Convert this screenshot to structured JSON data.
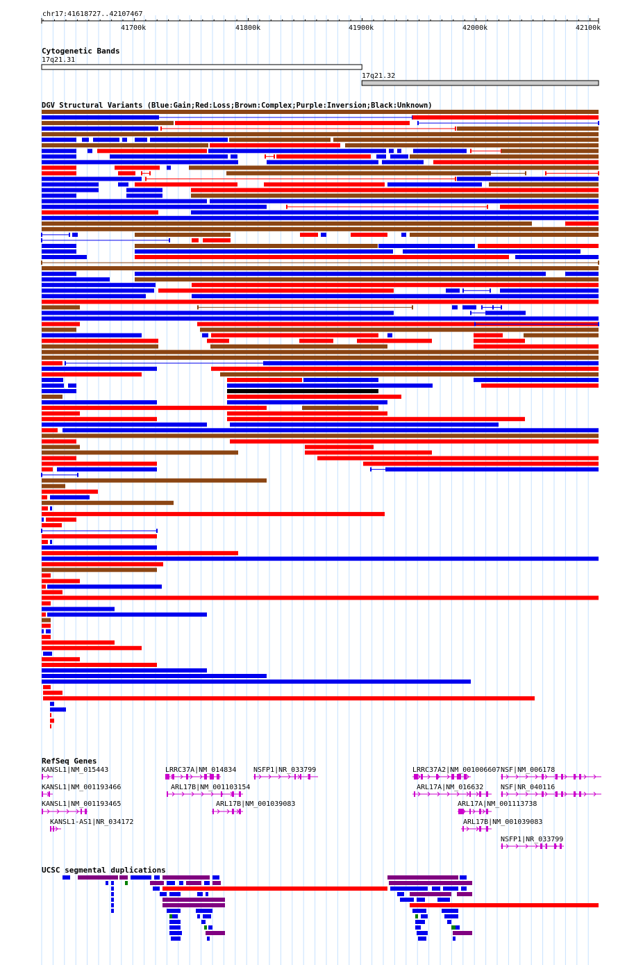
{
  "ruler": {
    "position_label": "chr17:41618727..42107467",
    "ticks": [
      {
        "kb": 41700,
        "label": "41700k"
      },
      {
        "kb": 41800,
        "label": "41800k"
      },
      {
        "kb": 41900,
        "label": "41900k"
      },
      {
        "kb": 42000,
        "label": "42000k"
      },
      {
        "kb": 42100,
        "label": "42100k"
      }
    ]
  },
  "cytoband": {
    "title": "Cytogenetic Bands",
    "bands": [
      {
        "label": "17q21.31",
        "start_kb": 41618.7,
        "end_kb": 41899.8,
        "shade": "#ffffff"
      },
      {
        "label": "17q21.32",
        "start_kb": 41899.8,
        "end_kb": 42107.5,
        "shade": "#cccccc"
      }
    ]
  },
  "dgv": {
    "title": "DGV Structural Variants (Blue:Gain;Red:Loss;Brown:Complex;Purple:Inversion;Black:Unknown)",
    "colors": {
      "gain": "#0000ee",
      "loss": "#ff0000",
      "complex": "#8b4513",
      "inversion": "#800080",
      "unknown": "#000000"
    }
  },
  "refseq": {
    "title": "RefSeq Genes",
    "color": "#cc00cc",
    "genes": [
      {
        "label": "KANSL1|NM_015443"
      },
      {
        "label": "KANSL1|NM_001193466"
      },
      {
        "label": "KANSL1|NM_001193465"
      },
      {
        "label": "KANSL1-AS1|NR_034172"
      },
      {
        "label": "LRRC37A|NM_014834"
      },
      {
        "label": "ARL17B|NM_001103154"
      },
      {
        "label": "ARL17B|NM_001039083"
      },
      {
        "label": "NSFP1|NR_033799"
      },
      {
        "label": "LRRC37A2|NM_001006607"
      },
      {
        "label": "ARL17A|NM_016632"
      },
      {
        "label": "ARL17A|NM_001113738"
      },
      {
        "label": "ARL17B|NM_001039083"
      },
      {
        "label": "NSF|NM_006178"
      },
      {
        "label": "NSF|NR_040116"
      },
      {
        "label": "NSFP1|NR_033799"
      }
    ]
  },
  "segdup": {
    "title": "UCSC segmental duplications",
    "colors": {
      "purple": "#800080",
      "blue": "#0000ee",
      "red": "#ff0000",
      "green": "#008000"
    }
  }
}
